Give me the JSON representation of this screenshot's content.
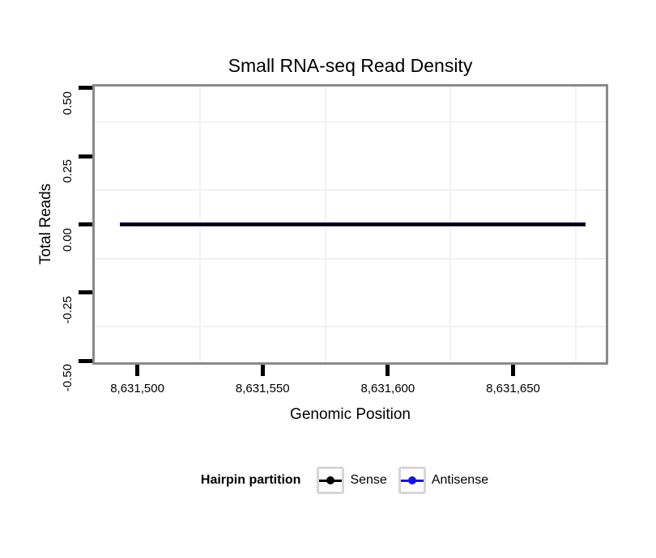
{
  "title": "Small RNA-seq Read Density",
  "chart_data": {
    "type": "line",
    "title": "Small RNA-seq Read Density",
    "xlabel": "Genomic Position",
    "ylabel": "Total Reads",
    "x_ticks": [
      8631500,
      8631550,
      8631600,
      8631650
    ],
    "x_tick_labels": [
      "8,631,500",
      "8,631,550",
      "8,631,600",
      "8,631,650"
    ],
    "y_ticks": [
      0.5,
      0.25,
      0,
      -0.25,
      -0.5
    ],
    "y_tick_labels": [
      "0.50",
      "0.25",
      "0.00",
      "-0.25",
      "-0.50"
    ],
    "x_range": [
      8631483,
      8631687
    ],
    "y_range": [
      -0.505,
      0.505
    ],
    "x_minor_gridlines": [
      8631525,
      8631575,
      8631625,
      8631675
    ],
    "y_minor_gridlines": [
      0.375,
      0.125,
      -0.125,
      -0.375
    ],
    "grid": "minor-gridlines-only",
    "legend_position": "bottom",
    "series": [
      {
        "name": "Sense",
        "color": "#000000",
        "y_constant": 0,
        "x_start": 8631493,
        "x_end": 8631679
      },
      {
        "name": "Antisense",
        "color": "#1414e6",
        "y_constant": 0,
        "x_start": 8631493,
        "x_end": 8631679
      }
    ]
  },
  "legend": {
    "title": "Hairpin partition",
    "items": [
      {
        "label": "Sense",
        "color": "#000000"
      },
      {
        "label": "Antisense",
        "color": "#1414e6"
      }
    ]
  },
  "colors": {
    "background": "#ffffff",
    "panel_border": "#8a8a8a",
    "minor_gridline": "#f1f1f4",
    "tick": "#000000",
    "text": "#000000",
    "overlap_line_edge": "#23235e",
    "legend_key_border": "#d6d6d6",
    "legend_key_fill": "#ffffff"
  }
}
